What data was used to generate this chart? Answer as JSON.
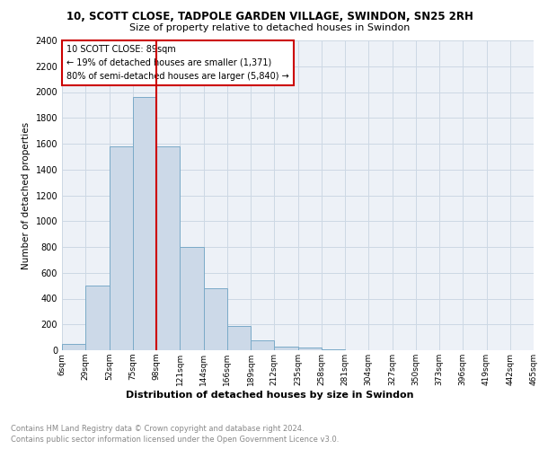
{
  "title1": "10, SCOTT CLOSE, TADPOLE GARDEN VILLAGE, SWINDON, SN25 2RH",
  "title2": "Size of property relative to detached houses in Swindon",
  "xlabel": "Distribution of detached houses by size in Swindon",
  "ylabel": "Number of detached properties",
  "bin_labels": [
    "6sqm",
    "29sqm",
    "52sqm",
    "75sqm",
    "98sqm",
    "121sqm",
    "144sqm",
    "166sqm",
    "189sqm",
    "212sqm",
    "235sqm",
    "258sqm",
    "281sqm",
    "304sqm",
    "327sqm",
    "350sqm",
    "373sqm",
    "396sqm",
    "419sqm",
    "442sqm",
    "465sqm"
  ],
  "bar_heights": [
    50,
    500,
    1580,
    1960,
    1580,
    800,
    480,
    190,
    80,
    30,
    20,
    10,
    0,
    0,
    0,
    0,
    0,
    0,
    0,
    0
  ],
  "bar_color": "#ccd9e8",
  "bar_edgecolor": "#7aaac8",
  "grid_color": "#ccd8e4",
  "vline_color": "#cc0000",
  "annotation_text": "10 SCOTT CLOSE: 89sqm\n← 19% of detached houses are smaller (1,371)\n80% of semi-detached houses are larger (5,840) →",
  "annotation_box_color": "#cc0000",
  "ylim": [
    0,
    2400
  ],
  "yticks": [
    0,
    200,
    400,
    600,
    800,
    1000,
    1200,
    1400,
    1600,
    1800,
    2000,
    2200,
    2400
  ],
  "footnote1": "Contains HM Land Registry data © Crown copyright and database right 2024.",
  "footnote2": "Contains public sector information licensed under the Open Government Licence v3.0.",
  "background_color": "#edf1f7"
}
